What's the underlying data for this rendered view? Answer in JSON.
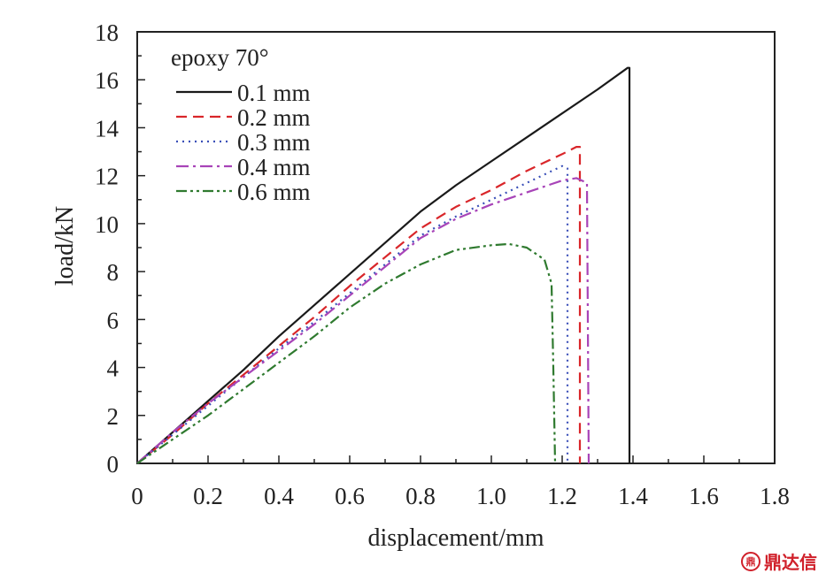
{
  "chart_data": {
    "type": "line",
    "title": "",
    "xlabel": "displacement/mm",
    "ylabel": "load/kN",
    "xlim": [
      0,
      1.8
    ],
    "ylim": [
      0,
      18
    ],
    "xticks": [
      "0",
      "0.2",
      "0.4",
      "0.6",
      "0.8",
      "1.0",
      "1.2",
      "1.4",
      "1.6",
      "1.8"
    ],
    "yticks": [
      "0",
      "2",
      "4",
      "6",
      "8",
      "10",
      "12",
      "14",
      "16",
      "18"
    ],
    "grid": false,
    "legend": {
      "title": "epoxy 70°",
      "position": "top-left"
    },
    "series": [
      {
        "name": "0.1 mm",
        "color": "#1a1a1a",
        "dash": "solid",
        "points": [
          [
            0,
            0
          ],
          [
            0.1,
            1.3
          ],
          [
            0.2,
            2.6
          ],
          [
            0.3,
            3.9
          ],
          [
            0.4,
            5.3
          ],
          [
            0.5,
            6.6
          ],
          [
            0.6,
            7.9
          ],
          [
            0.7,
            9.2
          ],
          [
            0.8,
            10.5
          ],
          [
            0.9,
            11.6
          ],
          [
            1.0,
            12.6
          ],
          [
            1.1,
            13.6
          ],
          [
            1.2,
            14.6
          ],
          [
            1.3,
            15.6
          ],
          [
            1.385,
            16.5
          ],
          [
            1.39,
            16.5
          ],
          [
            1.39,
            0
          ]
        ]
      },
      {
        "name": "0.2 mm",
        "color": "#d9262a",
        "dash": "dashed",
        "points": [
          [
            0,
            0
          ],
          [
            0.1,
            1.2
          ],
          [
            0.2,
            2.5
          ],
          [
            0.3,
            3.7
          ],
          [
            0.4,
            4.9
          ],
          [
            0.5,
            6.1
          ],
          [
            0.6,
            7.4
          ],
          [
            0.7,
            8.6
          ],
          [
            0.8,
            9.8
          ],
          [
            0.9,
            10.7
          ],
          [
            1.0,
            11.4
          ],
          [
            1.1,
            12.2
          ],
          [
            1.2,
            12.9
          ],
          [
            1.24,
            13.2
          ],
          [
            1.25,
            13.2
          ],
          [
            1.25,
            0
          ]
        ]
      },
      {
        "name": "0.3 mm",
        "color": "#3a4fb8",
        "dash": "dotted",
        "points": [
          [
            0,
            0
          ],
          [
            0.1,
            1.2
          ],
          [
            0.2,
            2.4
          ],
          [
            0.3,
            3.6
          ],
          [
            0.4,
            4.8
          ],
          [
            0.5,
            5.9
          ],
          [
            0.6,
            7.1
          ],
          [
            0.7,
            8.3
          ],
          [
            0.8,
            9.5
          ],
          [
            0.9,
            10.3
          ],
          [
            1.0,
            11.0
          ],
          [
            1.1,
            11.7
          ],
          [
            1.2,
            12.4
          ],
          [
            1.215,
            12.3
          ],
          [
            1.215,
            0
          ]
        ]
      },
      {
        "name": "0.4 mm",
        "color": "#a844b8",
        "dash": "dashdot",
        "points": [
          [
            0,
            0
          ],
          [
            0.1,
            1.3
          ],
          [
            0.2,
            2.5
          ],
          [
            0.3,
            3.6
          ],
          [
            0.4,
            4.7
          ],
          [
            0.5,
            5.8
          ],
          [
            0.6,
            7.0
          ],
          [
            0.7,
            8.2
          ],
          [
            0.8,
            9.4
          ],
          [
            0.9,
            10.2
          ],
          [
            1.0,
            10.8
          ],
          [
            1.1,
            11.3
          ],
          [
            1.2,
            11.8
          ],
          [
            1.24,
            11.9
          ],
          [
            1.27,
            11.7
          ],
          [
            1.275,
            0
          ]
        ]
      },
      {
        "name": "0.6 mm",
        "color": "#2f7a2f",
        "dash": "dashdotdot",
        "points": [
          [
            0,
            0
          ],
          [
            0.1,
            1.0
          ],
          [
            0.2,
            2.0
          ],
          [
            0.3,
            3.1
          ],
          [
            0.4,
            4.2
          ],
          [
            0.5,
            5.3
          ],
          [
            0.6,
            6.5
          ],
          [
            0.7,
            7.5
          ],
          [
            0.8,
            8.3
          ],
          [
            0.9,
            8.9
          ],
          [
            1.0,
            9.1
          ],
          [
            1.05,
            9.15
          ],
          [
            1.1,
            9.0
          ],
          [
            1.15,
            8.5
          ],
          [
            1.17,
            7.5
          ],
          [
            1.175,
            4.0
          ],
          [
            1.18,
            0
          ]
        ]
      }
    ]
  },
  "watermark": {
    "icon": "seal-icon",
    "text": "鼎达信",
    "icon_glyph": "鼎"
  }
}
